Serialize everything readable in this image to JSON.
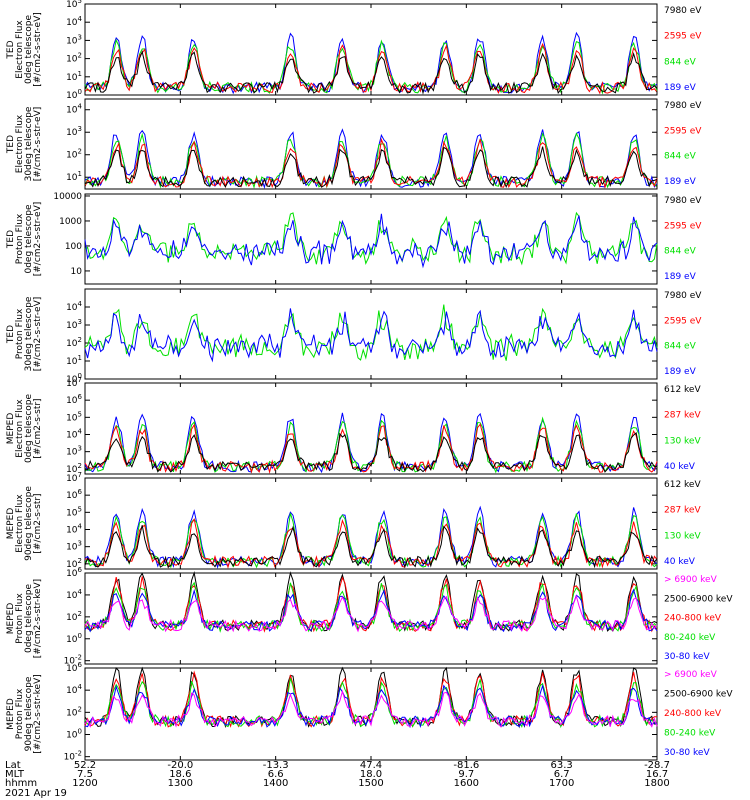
{
  "colors": {
    "magenta": "#ff00ff",
    "black": "#000000",
    "red": "#ff0000",
    "green": "#00e000",
    "blue": "#0000ff"
  },
  "chart_data": [
    {
      "type": "line",
      "ylabel": [
        "TED",
        "Electron Flux",
        "0deg telescope",
        "[#/cm2-s-str-eV]"
      ],
      "y_ticks": [
        "10^0",
        "10^1",
        "10^2",
        "10^3",
        "10^4",
        "10^5"
      ],
      "ylim": [
        1,
        100000
      ],
      "log_y": true,
      "series": [
        {
          "name": "7980 eV",
          "color": "black"
        },
        {
          "name": "2595 eV",
          "color": "red"
        },
        {
          "name": "844 eV",
          "color": "green"
        },
        {
          "name": "189 eV",
          "color": "blue"
        }
      ]
    },
    {
      "type": "line",
      "ylabel": [
        "TED",
        "Electron Flux",
        "30deg telescope",
        "[#/cm2-s-str-eV]"
      ],
      "y_ticks": [
        "10^1",
        "10^2",
        "10^3",
        "10^4"
      ],
      "ylim": [
        3,
        30000
      ],
      "log_y": true,
      "series": [
        {
          "name": "7980 eV",
          "color": "black"
        },
        {
          "name": "2595 eV",
          "color": "red"
        },
        {
          "name": "844 eV",
          "color": "green"
        },
        {
          "name": "189 eV",
          "color": "blue"
        }
      ]
    },
    {
      "type": "line",
      "ylabel": [
        "TED",
        "Proton Flux",
        "0deg telescope",
        "[#/cm2-s-str-eV]"
      ],
      "y_ticks": [
        "10",
        "100",
        "1000",
        "10000"
      ],
      "ylim": [
        3,
        12000
      ],
      "log_y": true,
      "series": [
        {
          "name": "7980 eV",
          "color": "black"
        },
        {
          "name": "2595 eV",
          "color": "red"
        },
        {
          "name": "844 eV",
          "color": "green"
        },
        {
          "name": "189 eV",
          "color": "blue"
        }
      ]
    },
    {
      "type": "line",
      "ylabel": [
        "TED",
        "Proton Flux",
        "30deg telescope",
        "[#/cm2-s-str-eV]"
      ],
      "y_ticks": [
        "10^0",
        "10^1",
        "10^2",
        "10^3",
        "10^4"
      ],
      "ylim": [
        1,
        100000
      ],
      "log_y": true,
      "series": [
        {
          "name": "7980 eV",
          "color": "black"
        },
        {
          "name": "2595 eV",
          "color": "red"
        },
        {
          "name": "844 eV",
          "color": "green"
        },
        {
          "name": "189 eV",
          "color": "blue"
        }
      ]
    },
    {
      "type": "line",
      "ylabel": [
        "MEPED",
        "Electron Flux",
        "0deg telescope",
        "[#/cm2-s-str]"
      ],
      "y_ticks": [
        "10^2",
        "10^3",
        "10^4",
        "10^5",
        "10^6",
        "10^7"
      ],
      "ylim": [
        50,
        10000000
      ],
      "log_y": true,
      "series": [
        {
          "name": "612 keV",
          "color": "black"
        },
        {
          "name": "287 keV",
          "color": "red"
        },
        {
          "name": "130 keV",
          "color": "green"
        },
        {
          "name": "40 keV",
          "color": "blue"
        }
      ]
    },
    {
      "type": "line",
      "ylabel": [
        "MEPED",
        "Electron Flux",
        "90deg telescope",
        "[#/cm2-s-str]"
      ],
      "y_ticks": [
        "10^2",
        "10^3",
        "10^4",
        "10^5",
        "10^6",
        "10^7"
      ],
      "ylim": [
        50,
        10000000
      ],
      "log_y": true,
      "series": [
        {
          "name": "612 keV",
          "color": "black"
        },
        {
          "name": "287 keV",
          "color": "red"
        },
        {
          "name": "130 keV",
          "color": "green"
        },
        {
          "name": "40 keV",
          "color": "blue"
        }
      ]
    },
    {
      "type": "line",
      "ylabel": [
        "MEPED",
        "Proton Flux",
        "0deg telescope",
        "[#/cm2-s-str-keV]"
      ],
      "y_ticks": [
        "10^-2",
        "10^0",
        "10^2",
        "10^4",
        "10^6"
      ],
      "ylim": [
        0.005,
        1000000
      ],
      "log_y": true,
      "series": [
        {
          "name": "> 6900 keV",
          "color": "magenta"
        },
        {
          "name": "2500-6900 keV",
          "color": "black"
        },
        {
          "name": "240-800 keV",
          "color": "red"
        },
        {
          "name": "80-240 keV",
          "color": "green"
        },
        {
          "name": "30-80 keV",
          "color": "blue"
        }
      ]
    },
    {
      "type": "line",
      "ylabel": [
        "MEPED",
        "Proton Flux",
        "90deg telescope",
        "[#/cm2-s-str-keV]"
      ],
      "y_ticks": [
        "10^-2",
        "10^0",
        "10^2",
        "10^4",
        "10^6"
      ],
      "ylim": [
        0.005,
        1000000
      ],
      "log_y": true,
      "series": [
        {
          "name": "> 6900 keV",
          "color": "magenta"
        },
        {
          "name": "2500-6900 keV",
          "color": "black"
        },
        {
          "name": "240-800 keV",
          "color": "red"
        },
        {
          "name": "80-240 keV",
          "color": "green"
        },
        {
          "name": "30-80 keV",
          "color": "blue"
        }
      ]
    }
  ],
  "x_axis": {
    "range": [
      "1200",
      "1800"
    ],
    "row_labels": [
      "Lat",
      "MLT",
      "hhmm"
    ],
    "ticks": [
      {
        "hhmm": "1200",
        "lat": "52.2",
        "mlt": "7.5"
      },
      {
        "hhmm": "1300",
        "lat": "-20.0",
        "mlt": "18.6"
      },
      {
        "hhmm": "1400",
        "lat": "-13.3",
        "mlt": "6.6"
      },
      {
        "hhmm": "1500",
        "lat": "47.4",
        "mlt": "18.0"
      },
      {
        "hhmm": "1600",
        "lat": "-81.6",
        "mlt": "9.7"
      },
      {
        "hhmm": "1700",
        "lat": "63.3",
        "mlt": "6.7"
      },
      {
        "hhmm": "1800",
        "lat": "-28.7",
        "mlt": "16.7"
      }
    ],
    "date": "2021 Apr 19"
  }
}
